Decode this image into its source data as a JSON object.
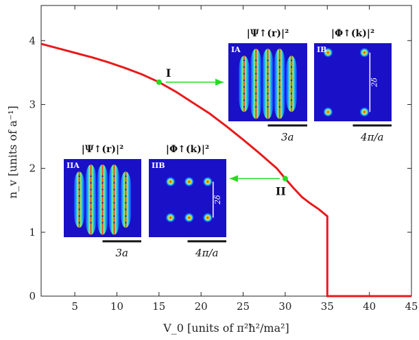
{
  "chart_data": {
    "type": "line",
    "xlabel": "V_0 [units of π²ħ²/ma²]",
    "ylabel": "n_v [units of a⁻¹]",
    "xlim": [
      1,
      45
    ],
    "ylim": [
      0,
      4.55
    ],
    "x_ticks": [
      5,
      10,
      15,
      20,
      25,
      30,
      35,
      40,
      45
    ],
    "y_ticks": [
      0,
      1,
      2,
      3,
      4
    ],
    "grid": false,
    "line_color": "#e8191b",
    "series": [
      {
        "x": [
          1,
          3,
          5,
          7,
          9,
          11,
          13,
          15,
          17,
          19,
          21,
          23,
          25,
          27,
          29,
          30,
          31,
          32,
          33,
          34,
          35,
          35,
          40,
          45
        ],
        "y": [
          3.95,
          3.88,
          3.81,
          3.74,
          3.66,
          3.57,
          3.47,
          3.35,
          3.2,
          3.03,
          2.86,
          2.66,
          2.45,
          2.23,
          2.0,
          1.84,
          1.69,
          1.55,
          1.45,
          1.36,
          1.25,
          0,
          0,
          0
        ]
      }
    ],
    "points": [
      {
        "label": "I",
        "x": 15,
        "y": 3.35,
        "color": "#22dd22"
      },
      {
        "label": "II",
        "x": 30,
        "y": 1.84,
        "color": "#22dd22"
      }
    ],
    "insets": [
      {
        "id": "IA",
        "title": "|Ψ↑(r)|²",
        "scale": "3a",
        "pattern": "real"
      },
      {
        "id": "IB",
        "title": "|Φ↑(k)|²",
        "scale": "4π/a",
        "pattern": "momentum",
        "delta": "2δ"
      },
      {
        "id": "IIA",
        "title": "|Ψ↑(r)|²",
        "scale": "3a",
        "pattern": "real"
      },
      {
        "id": "IIB",
        "title": "|Φ↑(k)|²",
        "scale": "4π/a",
        "pattern": "momentum",
        "delta": "2δ"
      }
    ]
  }
}
